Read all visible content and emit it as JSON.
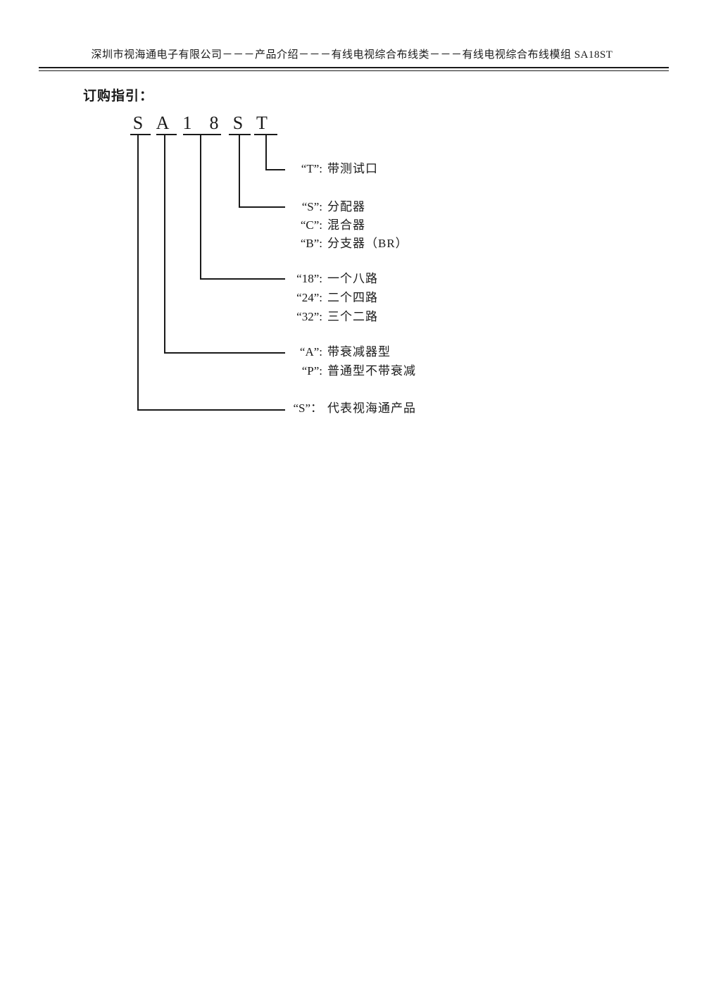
{
  "header": {
    "text": "深圳市视海通电子有限公司－－－产品介绍－－－有线电视综合布线类－－－有线电视综合布线模组 SA18ST"
  },
  "section_title": "订购指引：",
  "model_code": {
    "letters": [
      "S",
      "A",
      "1",
      "8",
      "S",
      "T"
    ]
  },
  "legend": {
    "rows": [
      {
        "key": "“T”:",
        "desc": "带测试口"
      },
      {
        "key": "“S”:",
        "desc": "分配器"
      },
      {
        "key": "“C”:",
        "desc": "混合器"
      },
      {
        "key": "“B”:",
        "desc": "分支器（BR）"
      },
      {
        "key": "“18”:",
        "desc": "一个八路"
      },
      {
        "key": "“24”:",
        "desc": "二个四路"
      },
      {
        "key": "“32”:",
        "desc": "三个二路"
      },
      {
        "key": "“A”:",
        "desc": "带衰减器型"
      },
      {
        "key": "“P”:",
        "desc": "普通型不带衰减"
      },
      {
        "key": "“S”：",
        "desc": "代表视海通产品"
      }
    ]
  }
}
